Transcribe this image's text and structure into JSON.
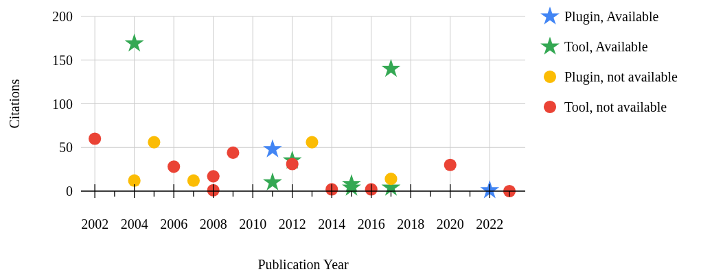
{
  "chart_data": {
    "type": "scatter",
    "xlabel": "Publication Year",
    "ylabel": "Citations",
    "xlim": [
      2001.3,
      2023.8
    ],
    "ylim": [
      0,
      200
    ],
    "xticks": [
      2002,
      {
        "value": 2003,
        "label": null
      },
      2004,
      {
        "value": 2005,
        "label": null
      },
      2006,
      {
        "value": 2007,
        "label": null
      },
      2008,
      {
        "value": 2009,
        "label": null
      },
      2010,
      {
        "value": 2011,
        "label": null
      },
      2012,
      {
        "value": 2013,
        "label": null
      },
      2014,
      {
        "value": 2015,
        "label": null
      },
      2016,
      {
        "value": 2017,
        "label": null
      },
      2018,
      {
        "value": 2019,
        "label": null
      },
      2020,
      {
        "value": 2021,
        "label": null
      },
      2022,
      {
        "value": 2023,
        "label": null
      }
    ],
    "yticks": [
      0,
      50,
      100,
      150,
      200
    ],
    "grid": true,
    "legend": "right",
    "series": [
      {
        "name": "Plugin, Available",
        "color": "#4285f4",
        "marker": "star",
        "x": [
          2011,
          2022
        ],
        "values": [
          48,
          1
        ]
      },
      {
        "name": "Tool, Available",
        "color": "#34a853",
        "marker": "star",
        "x": [
          2004,
          2011,
          2012,
          2015,
          2015,
          2017,
          2017
        ],
        "values": [
          169,
          10,
          35,
          8,
          4,
          140,
          4
        ]
      },
      {
        "name": "Plugin, not available",
        "color": "#fbbc04",
        "marker": "circle",
        "x": [
          2004,
          2005,
          2007,
          2013,
          2017
        ],
        "values": [
          12,
          56,
          12,
          56,
          14
        ]
      },
      {
        "name": "Tool, not available",
        "color": "#ea4335",
        "marker": "circle",
        "x": [
          2002,
          2006,
          2008,
          2008,
          2009,
          2012,
          2014,
          2016,
          2020,
          2023
        ],
        "values": [
          60,
          28,
          17,
          1,
          44,
          31,
          2,
          2,
          30,
          0
        ]
      }
    ]
  }
}
